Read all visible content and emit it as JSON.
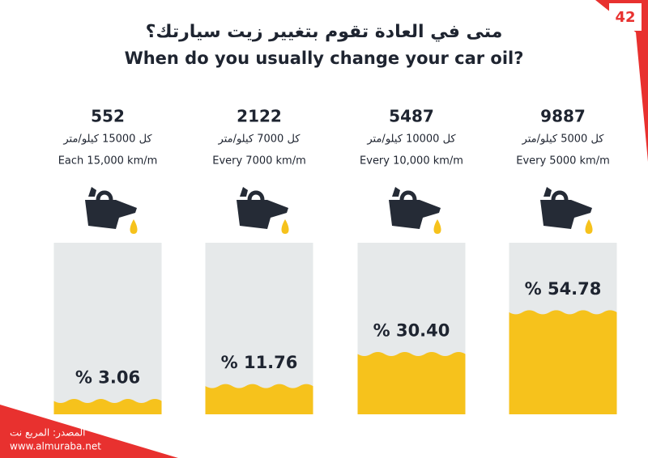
{
  "page_number": "42",
  "chart_data": {
    "type": "oil-fill",
    "title": "متى في العادة تقوم بتغيير زيت سيارتك؟",
    "subtitle": "When do you usually change your car oil?",
    "categories": [
      "كل 15000 كيلو/متر",
      "كل 7000 كيلو/متر",
      "كل 10000 كيلو/متر",
      "كل 5000 كيلو/متر"
    ],
    "categories_en": [
      "Each 15,000 km/m",
      "Every 7000 km/m",
      "Every 10,000 km/m",
      "Every 5000 km/m"
    ],
    "counts": [
      552,
      2122,
      5487,
      9887
    ],
    "values": [
      3.06,
      11.76,
      30.4,
      54.78
    ],
    "value_labels": [
      "% 3.06",
      "% 11.76",
      "% 30.40",
      "% 54.78"
    ],
    "color": "#f6c21c"
  },
  "source": "المصدر: المربع نت",
  "website": "www.almuraba.net"
}
